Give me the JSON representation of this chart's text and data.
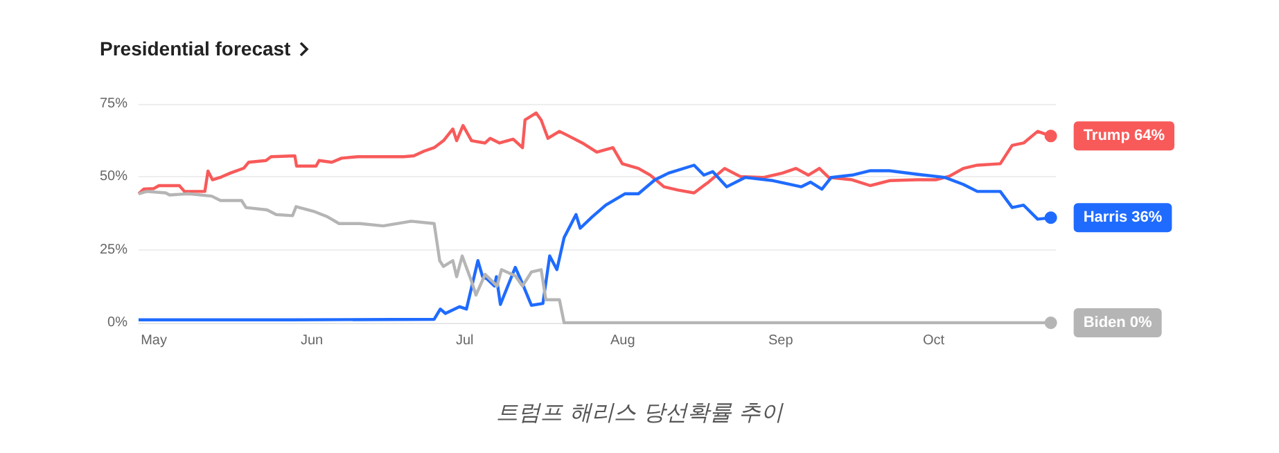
{
  "chart_data": {
    "type": "line",
    "title": "Presidential forecast",
    "annotations": [
      "트럼프 해리스 당선확률 추이"
    ],
    "xlim": [
      "--04-28",
      "--10-25"
    ],
    "xticks": [
      {
        "value": "--05-01",
        "label": "May"
      },
      {
        "value": "--06-01",
        "label": "Jun"
      },
      {
        "value": "--07-01",
        "label": "Jul"
      },
      {
        "value": "--08-01",
        "label": "Aug"
      },
      {
        "value": "--09-01",
        "label": "Sep"
      },
      {
        "value": "--10-01",
        "label": "Oct"
      }
    ],
    "ylim": [
      0,
      75
    ],
    "yticks": [
      {
        "value": 0,
        "label": "0%"
      },
      {
        "value": 25,
        "label": "25%"
      },
      {
        "value": 50,
        "label": "50%"
      },
      {
        "value": 75,
        "label": "75%"
      }
    ],
    "grid": "y",
    "legend": false,
    "line_style": "solid",
    "series": [
      {
        "name": "Trump",
        "color": "#f85a5a",
        "x": [
          "--04-28",
          "--04-29",
          "--05-01",
          "--05-02",
          "--05-06",
          "--05-07",
          "--05-11",
          "--05-11T15:00",
          "--05-12T12:00",
          "--05-14",
          "--05-16",
          "--05-18T16:00",
          "--05-19T14:00",
          "--05-23",
          "--05-24",
          "--05-28T16:00",
          "--05-29",
          "--06-01T20:00",
          "--06-02T10:00",
          "--06-04T22:00",
          "--06-06T20:00",
          "--06-10",
          "--06-19",
          "--06-21",
          "--06-23",
          "--06-25",
          "--06-26T20:00",
          "--06-28T16:00",
          "--06-29T10:00",
          "--06-30T16:00",
          "--07-02T08:00",
          "--07-05",
          "--07-06",
          "--07-07T20:00",
          "--07-10T12:00",
          "--07-12T08:00",
          "--07-12T20:00",
          "--07-15",
          "--07-16",
          "--07-17T08:00",
          "--07-19T14:00",
          "--07-21T10:00",
          "--07-24T02:00",
          "--07-26T22:00",
          "--07-30T02:00",
          "--07-31T22:00",
          "--08-04T02:00",
          "--08-06T10:00",
          "--08-09T02:00",
          "--08-11T20:00",
          "--08-15",
          "--08-17T20:00",
          "--08-21",
          "--08-24T02:00",
          "--08-28T16:00",
          "--09-01T08:00",
          "--09-04",
          "--09-06T10:00",
          "--09-08T14:00",
          "--09-10T10:00",
          "--09-15",
          "--09-18T14:00",
          "--09-22T08:00",
          "--09-27T16:00",
          "--10-01T10:00",
          "--10-04T02:00",
          "--10-06T20:00",
          "--10-09T14:00",
          "--10-14T02:00",
          "--10-16T10:00",
          "--10-18T16:00",
          "--10-21T10:00",
          "--10-24"
        ],
        "values": [
          44.2,
          45.8,
          46,
          47,
          47,
          45,
          45,
          52,
          49,
          49.8,
          51.3,
          53,
          55,
          55.6,
          56.9,
          57.2,
          53.7,
          53.7,
          55.6,
          55,
          56.4,
          56.9,
          56.9,
          57.2,
          58.8,
          60,
          62.4,
          66.4,
          62.4,
          67.6,
          62.4,
          61.6,
          63.2,
          61.6,
          62.9,
          60,
          69.5,
          71.9,
          69.5,
          63.2,
          65.6,
          64,
          61.6,
          58.5,
          60,
          54.5,
          52.9,
          50.6,
          46.6,
          45.5,
          44.5,
          48.2,
          52.9,
          50.1,
          49.8,
          51.3,
          52.9,
          50.6,
          52.9,
          49.8,
          49,
          47,
          48.7,
          49,
          49,
          50.2,
          52.9,
          54,
          54.5,
          60.8,
          61.6,
          65.6,
          64
        ],
        "value_labels": [
          null,
          null,
          null,
          null,
          null,
          null,
          null,
          null,
          null,
          null,
          null,
          null,
          null,
          null,
          null,
          null,
          null,
          null,
          null,
          null,
          null,
          null,
          null,
          null,
          null,
          null,
          null,
          null,
          null,
          null,
          null,
          null,
          null,
          null,
          null,
          null,
          null,
          null,
          null,
          null,
          null,
          null,
          null,
          null,
          null,
          null,
          null,
          null,
          null,
          null,
          null,
          null,
          null,
          null,
          null,
          null,
          null,
          null,
          null,
          null,
          null,
          null,
          null,
          null,
          null,
          null,
          null,
          null,
          null,
          null,
          null,
          null,
          "64%"
        ]
      },
      {
        "name": "Harris",
        "color": "#1f6bff",
        "x": [
          "--04-28",
          "--05-28",
          "--06-25",
          "--06-26T05:00",
          "--06-27T05:00",
          "--06-30",
          "--07-01T08:00",
          "--07-03T14:00",
          "--07-04T12:00",
          "--07-05T10:00",
          "--07-06T20:00",
          "--07-07T05:00",
          "--07-08",
          "--07-10T22:00",
          "--07-12T08:00",
          "--07-14T02:00",
          "--07-16T08:00",
          "--07-17T16:00",
          "--07-19T02:00",
          "--07-20T12:00",
          "--07-22T20:00",
          "--07-23T16:00",
          "--07-26",
          "--07-28T16:00",
          "--08-01T10:00",
          "--08-04T02:00",
          "--08-07T08:00",
          "--08-10",
          "--08-15",
          "--08-16T22:00",
          "--08-18T16:00",
          "--08-21T10:00",
          "--08-25",
          "--08-30T12:00",
          "--09-05",
          "--09-06T20:00",
          "--09-09T02:00",
          "--09-10T22:00",
          "--09-15",
          "--09-18T14:00",
          "--09-22T08:00",
          "--09-27T16:00",
          "--10-03T05:00",
          "--10-06T20:00",
          "--10-09T14:00",
          "--10-14T02:00",
          "--10-16T10:00",
          "--10-18T16:00",
          "--10-21T10:00",
          "--10-24"
        ],
        "values": [
          1,
          1,
          1.2,
          4.7,
          3.2,
          5.5,
          4.7,
          21.3,
          15.8,
          15,
          12.6,
          15.8,
          6.3,
          19,
          13.4,
          6,
          6.6,
          22.9,
          18.2,
          29.2,
          37.1,
          32.4,
          36.3,
          40.3,
          44.2,
          44.2,
          49,
          51.3,
          54,
          50.6,
          51.8,
          46.6,
          49.8,
          48.7,
          46.6,
          48.2,
          45.8,
          49.8,
          50.6,
          52.1,
          52.1,
          50.9,
          49.8,
          47.4,
          45,
          45,
          39.5,
          40.3,
          35.5,
          36
        ],
        "value_labels": [
          null,
          null,
          null,
          null,
          null,
          null,
          null,
          null,
          null,
          null,
          null,
          null,
          null,
          null,
          null,
          null,
          null,
          null,
          null,
          null,
          null,
          null,
          null,
          null,
          null,
          null,
          null,
          null,
          null,
          null,
          null,
          null,
          null,
          null,
          null,
          null,
          null,
          null,
          null,
          null,
          null,
          null,
          null,
          null,
          null,
          null,
          null,
          null,
          null,
          "36%"
        ]
      },
      {
        "name": "Biden",
        "color": "#b5b5b5",
        "x": [
          "--04-28",
          "--04-29T14:00",
          "--05-03T08:00",
          "--05-04T02:00",
          "--05-07T20:00",
          "--05-12T08:00",
          "--05-14T02:00",
          "--05-18T05:00",
          "--05-19T02:00",
          "--05-23T05:00",
          "--05-25",
          "--05-28T05:00",
          "--05-28T22:00",
          "--06-01T08:00",
          "--06-04T02:00",
          "--06-06T08:00",
          "--06-10T10:00",
          "--06-15",
          "--06-20T12:00",
          "--06-25",
          "--06-26T02:00",
          "--06-26T20:00",
          "--06-28T16:00",
          "--06-29T10:00",
          "--06-30T12:00",
          "--07-02T08:00",
          "--07-03T05:00",
          "--07-05",
          "--07-07T08:00",
          "--07-08T05:00",
          "--07-10T22:00",
          "--07-12T08:00",
          "--07-14T02:00",
          "--07-16",
          "--07-16T22:00",
          "--07-19T14:00",
          "--07-20T12:00",
          "--10-24"
        ],
        "values": [
          44.2,
          45,
          44.5,
          43.8,
          44.2,
          43.4,
          41.9,
          41.9,
          39.5,
          38.7,
          37.1,
          36.7,
          39.8,
          38.2,
          36.3,
          34,
          34,
          33.2,
          34.8,
          34,
          21.3,
          19.3,
          21.3,
          15.8,
          22.9,
          14.2,
          9.5,
          16.6,
          12.6,
          18.2,
          16.1,
          12.6,
          17.4,
          18.2,
          7.9,
          7.9,
          0,
          0
        ],
        "value_labels": [
          null,
          null,
          null,
          null,
          null,
          null,
          null,
          null,
          null,
          null,
          null,
          null,
          null,
          null,
          null,
          null,
          null,
          null,
          null,
          null,
          null,
          null,
          null,
          null,
          null,
          null,
          null,
          null,
          null,
          null,
          null,
          null,
          null,
          null,
          null,
          null,
          null,
          "0%"
        ]
      }
    ]
  }
}
